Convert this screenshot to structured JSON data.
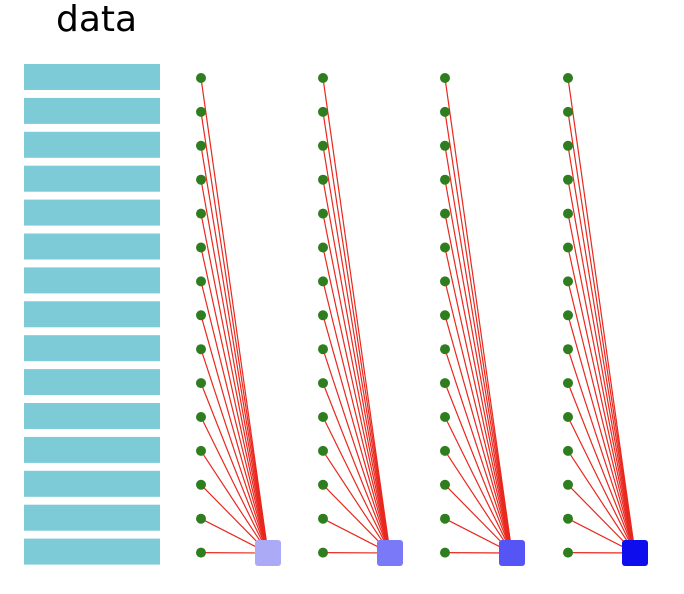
{
  "title": "data",
  "data_rows": 15,
  "columns": 4,
  "colors": {
    "data_bar": "#7ccbd6",
    "node": "#2e7d1e",
    "edge": "#e8281e",
    "targets": [
      "#aaaaf7",
      "#7a7af8",
      "#5555f6",
      "#0d0dee"
    ]
  }
}
